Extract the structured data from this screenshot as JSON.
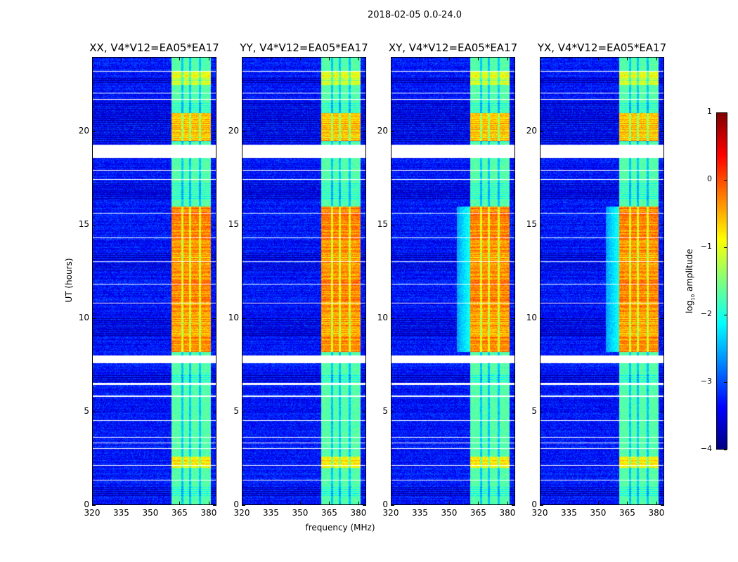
{
  "chart_data": {
    "type": "heatmap",
    "title": "2018-02-05 0.0-24.0",
    "xlabel": "frequency (MHz)",
    "ylabel": "UT (hours)",
    "xlim": [
      320,
      384
    ],
    "ylim": [
      0,
      24
    ],
    "xticks": [
      320,
      335,
      350,
      365,
      380
    ],
    "yticks": [
      0,
      5,
      10,
      15,
      20
    ],
    "colorbar": {
      "label": "log10 amplitude",
      "label_main": "log",
      "label_sub": "10",
      "label_rest": " amplitude",
      "range": [
        -4,
        1
      ],
      "ticks": [
        1,
        0,
        -1,
        -2,
        -3,
        -4
      ],
      "colormap": "jet"
    },
    "panels": [
      {
        "title": "XX, V4*V12=EA05*EA17",
        "halo": false
      },
      {
        "title": "YY, V4*V12=EA05*EA17",
        "halo": false
      },
      {
        "title": "XY, V4*V12=EA05*EA17",
        "halo": true
      },
      {
        "title": "YX, V4*V12=EA05*EA17",
        "halo": true
      }
    ],
    "background_level": -3.3,
    "rfi_band_mhz": [
      361,
      381
    ],
    "rfi_subband_gaps_mhz": [
      366.5,
      370.5,
      375.5
    ],
    "rfi_base_level": -1.7,
    "rfi_high_intervals_hours": [
      [
        8.2,
        16.0,
        -0.3
      ],
      [
        19.5,
        21.0,
        -0.5
      ],
      [
        2.0,
        2.6,
        -0.8
      ],
      [
        22.5,
        23.2,
        -1.0
      ]
    ],
    "flagged_intervals_hours": [
      [
        18.6,
        19.3
      ],
      [
        7.6,
        8.0
      ],
      [
        6.45,
        6.55
      ],
      [
        23.2,
        23.25
      ],
      [
        22.05,
        22.1
      ],
      [
        21.7,
        21.75
      ],
      [
        17.9,
        17.95
      ],
      [
        17.4,
        17.45
      ],
      [
        15.6,
        15.65
      ],
      [
        14.3,
        14.35
      ],
      [
        13.0,
        13.05
      ],
      [
        11.8,
        11.85
      ],
      [
        10.8,
        10.85
      ],
      [
        3.0,
        3.05
      ],
      [
        3.3,
        3.35
      ],
      [
        3.6,
        3.65
      ],
      [
        4.5,
        4.55
      ],
      [
        5.8,
        5.85
      ],
      [
        1.3,
        1.35
      ],
      [
        2.1,
        2.15
      ]
    ],
    "dark_intervals_hours": [
      [
        19.4,
        21.6
      ],
      [
        16.4,
        17.3
      ],
      [
        9.0,
        10.0
      ],
      [
        0.4,
        1.0
      ],
      [
        6.6,
        7.0
      ],
      [
        22.6,
        22.9
      ],
      [
        12.5,
        13.5
      ]
    ]
  }
}
